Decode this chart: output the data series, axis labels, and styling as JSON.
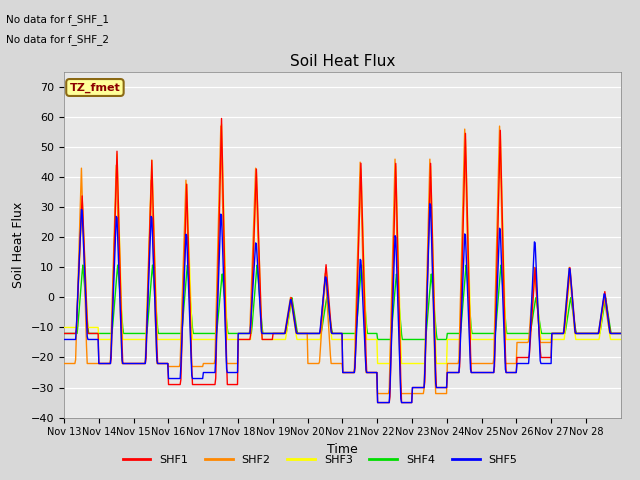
{
  "title": "Soil Heat Flux",
  "ylabel": "Soil Heat Flux",
  "xlabel": "Time",
  "ylim": [
    -40,
    75
  ],
  "yticks": [
    -40,
    -30,
    -20,
    -10,
    0,
    10,
    20,
    30,
    40,
    50,
    60,
    70
  ],
  "bg_color": "#d8d8d8",
  "colors": {
    "SHF1": "#ff0000",
    "SHF2": "#ff8800",
    "SHF3": "#ffff00",
    "SHF4": "#00dd00",
    "SHF5": "#0000ff"
  },
  "legend_label": "TZ_fmet",
  "note1": "No data for f_SHF_1",
  "note2": "No data for f_SHF_2",
  "xtick_labels": [
    "Nov 13",
    "Nov 14",
    "Nov 15",
    "Nov 16",
    "Nov 17",
    "Nov 18",
    "Nov 19",
    "Nov 20",
    "Nov 21",
    "Nov 22",
    "Nov 23",
    "Nov 24",
    "Nov 25",
    "Nov 26",
    "Nov 27",
    "Nov 28"
  ]
}
